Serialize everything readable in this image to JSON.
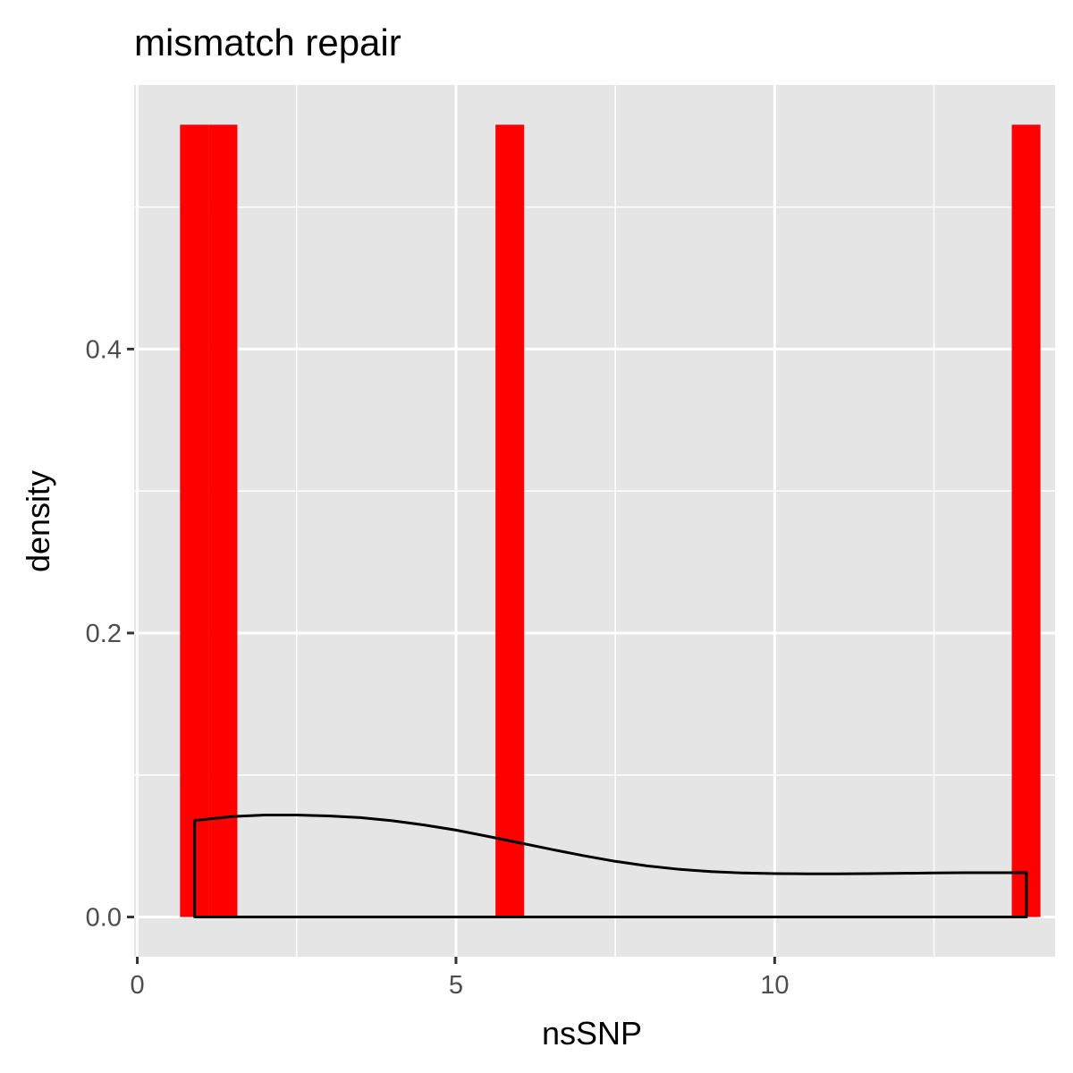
{
  "chart_data": {
    "type": "histogram",
    "title": "mismatch repair",
    "xlabel": "nsSNP",
    "ylabel": "density",
    "xlim": [
      -0.05,
      14.4
    ],
    "ylim": [
      -0.028,
      0.586
    ],
    "x_ticks": [
      {
        "value": 0,
        "label": "0"
      },
      {
        "value": 5,
        "label": "5"
      },
      {
        "value": 10,
        "label": "10"
      }
    ],
    "y_ticks": [
      {
        "value": 0.0,
        "label": "0.0"
      },
      {
        "value": 0.2,
        "label": "0.2"
      },
      {
        "value": 0.4,
        "label": "0.4"
      }
    ],
    "x_minor_breaks": [
      2.5,
      7.5,
      12.5
    ],
    "y_minor_breaks": [
      0.1,
      0.3,
      0.5
    ],
    "bins": [
      {
        "x0": 0.67,
        "x1": 1.12,
        "density": 0.558
      },
      {
        "x0": 1.12,
        "x1": 1.57,
        "density": 0.558
      },
      {
        "x0": 5.62,
        "x1": 6.07,
        "density": 0.558
      },
      {
        "x0": 13.72,
        "x1": 14.17,
        "density": 0.558
      }
    ],
    "density_curve": [
      [
        0.9,
        0.068
      ],
      [
        1.5,
        0.0708
      ],
      [
        2.0,
        0.0718
      ],
      [
        2.5,
        0.0718
      ],
      [
        3.0,
        0.0712
      ],
      [
        3.5,
        0.07
      ],
      [
        4.0,
        0.0678
      ],
      [
        4.5,
        0.0648
      ],
      [
        5.0,
        0.0612
      ],
      [
        5.5,
        0.0568
      ],
      [
        6.0,
        0.0522
      ],
      [
        6.5,
        0.0476
      ],
      [
        7.0,
        0.0432
      ],
      [
        7.5,
        0.0392
      ],
      [
        8.0,
        0.036
      ],
      [
        8.5,
        0.0336
      ],
      [
        9.0,
        0.032
      ],
      [
        9.5,
        0.031
      ],
      [
        10.0,
        0.0306
      ],
      [
        10.5,
        0.0304
      ],
      [
        11.0,
        0.0304
      ],
      [
        11.5,
        0.0306
      ],
      [
        12.0,
        0.0308
      ],
      [
        12.5,
        0.031
      ],
      [
        13.0,
        0.0312
      ],
      [
        13.5,
        0.0312
      ],
      [
        13.95,
        0.0312
      ]
    ],
    "bar_color": "#FF0000",
    "curve_color": "#000000",
    "panel_background": "#E5E5E5",
    "grid_color": "#FFFFFF",
    "grid": true,
    "legend": "none"
  }
}
